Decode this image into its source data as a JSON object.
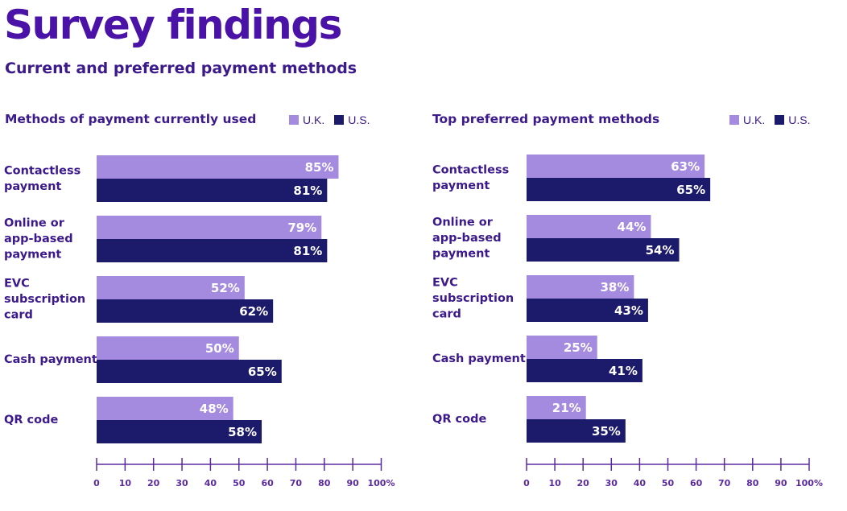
{
  "header": {
    "title": "Survey findings",
    "subtitle": "Current and preferred payment methods"
  },
  "colors": {
    "uk": "#a48be0",
    "us": "#1c1a6b",
    "text": "#3c1a8c",
    "title": "#4a12a6",
    "axis": "#5a2a9e"
  },
  "legend": {
    "uk": "U.K.",
    "us": "U.S."
  },
  "chart_data": [
    {
      "type": "bar",
      "orientation": "horizontal",
      "title": "Methods of payment currently used",
      "categories": [
        [
          "Contactless",
          "payment"
        ],
        [
          "Online or",
          "app-based",
          "payment"
        ],
        [
          "EVC",
          "subscription",
          "card"
        ],
        [
          "Cash payment"
        ],
        [
          "QR code"
        ]
      ],
      "series": [
        {
          "name": "U.K.",
          "values": [
            85,
            79,
            52,
            50,
            48
          ]
        },
        {
          "name": "U.S.",
          "values": [
            81,
            81,
            62,
            65,
            58
          ]
        }
      ],
      "xlim": [
        0,
        100
      ],
      "ticks": [
        "0",
        "10",
        "20",
        "30",
        "40",
        "50",
        "60",
        "70",
        "80",
        "90",
        "100%"
      ],
      "value_suffix": "%",
      "legend_position": "top-right",
      "grid": false
    },
    {
      "type": "bar",
      "orientation": "horizontal",
      "title": "Top preferred payment methods",
      "categories": [
        [
          "Contactless",
          "payment"
        ],
        [
          "Online or",
          "app-based",
          "payment"
        ],
        [
          "EVC",
          "subscription",
          "card"
        ],
        [
          "Cash payment"
        ],
        [
          "QR code"
        ]
      ],
      "series": [
        {
          "name": "U.K.",
          "values": [
            63,
            44,
            38,
            25,
            21
          ]
        },
        {
          "name": "U.S.",
          "values": [
            65,
            54,
            43,
            41,
            35
          ]
        }
      ],
      "xlim": [
        0,
        100
      ],
      "ticks": [
        "0",
        "10",
        "20",
        "30",
        "40",
        "50",
        "60",
        "70",
        "80",
        "90",
        "100%"
      ],
      "value_suffix": "%",
      "legend_position": "top-right",
      "grid": false
    }
  ]
}
